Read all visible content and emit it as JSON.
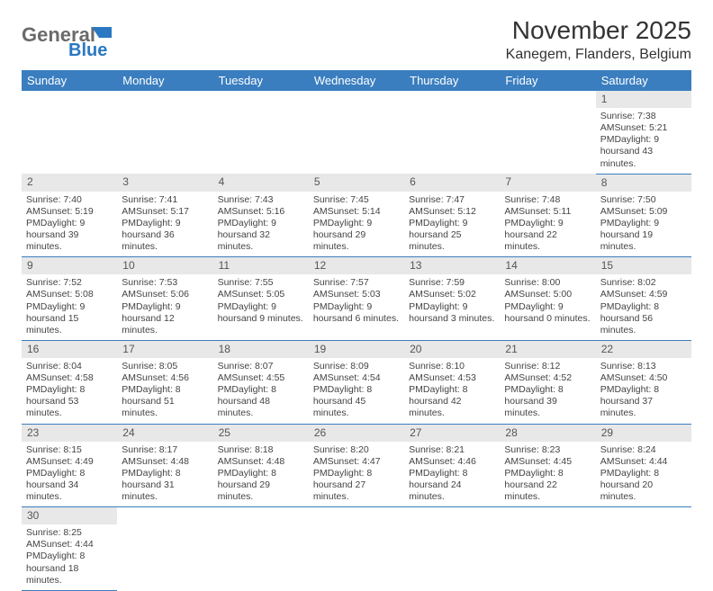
{
  "logo": {
    "word1": "General",
    "word2": "Blue",
    "word1_color": "#6a6a6a",
    "word2_color": "#2b78c2"
  },
  "title": "November 2025",
  "location": "Kanegem, Flanders, Belgium",
  "colors": {
    "header_bg": "#3a7ebf",
    "row_divider": "#3a7ebf",
    "daynum_bg": "#e8e8e8"
  },
  "daysOfWeek": [
    "Sunday",
    "Monday",
    "Tuesday",
    "Wednesday",
    "Thursday",
    "Friday",
    "Saturday"
  ],
  "weeks": [
    [
      null,
      null,
      null,
      null,
      null,
      null,
      {
        "n": "1",
        "sr": "7:38 AM",
        "ss": "5:21 PM",
        "dl": "9 hours",
        "dm": "and 43 minutes."
      }
    ],
    [
      {
        "n": "2",
        "sr": "7:40 AM",
        "ss": "5:19 PM",
        "dl": "9 hours",
        "dm": "and 39 minutes."
      },
      {
        "n": "3",
        "sr": "7:41 AM",
        "ss": "5:17 PM",
        "dl": "9 hours",
        "dm": "and 36 minutes."
      },
      {
        "n": "4",
        "sr": "7:43 AM",
        "ss": "5:16 PM",
        "dl": "9 hours",
        "dm": "and 32 minutes."
      },
      {
        "n": "5",
        "sr": "7:45 AM",
        "ss": "5:14 PM",
        "dl": "9 hours",
        "dm": "and 29 minutes."
      },
      {
        "n": "6",
        "sr": "7:47 AM",
        "ss": "5:12 PM",
        "dl": "9 hours",
        "dm": "and 25 minutes."
      },
      {
        "n": "7",
        "sr": "7:48 AM",
        "ss": "5:11 PM",
        "dl": "9 hours",
        "dm": "and 22 minutes."
      },
      {
        "n": "8",
        "sr": "7:50 AM",
        "ss": "5:09 PM",
        "dl": "9 hours",
        "dm": "and 19 minutes."
      }
    ],
    [
      {
        "n": "9",
        "sr": "7:52 AM",
        "ss": "5:08 PM",
        "dl": "9 hours",
        "dm": "and 15 minutes."
      },
      {
        "n": "10",
        "sr": "7:53 AM",
        "ss": "5:06 PM",
        "dl": "9 hours",
        "dm": "and 12 minutes."
      },
      {
        "n": "11",
        "sr": "7:55 AM",
        "ss": "5:05 PM",
        "dl": "9 hours",
        "dm": "and 9 minutes."
      },
      {
        "n": "12",
        "sr": "7:57 AM",
        "ss": "5:03 PM",
        "dl": "9 hours",
        "dm": "and 6 minutes."
      },
      {
        "n": "13",
        "sr": "7:59 AM",
        "ss": "5:02 PM",
        "dl": "9 hours",
        "dm": "and 3 minutes."
      },
      {
        "n": "14",
        "sr": "8:00 AM",
        "ss": "5:00 PM",
        "dl": "9 hours",
        "dm": "and 0 minutes."
      },
      {
        "n": "15",
        "sr": "8:02 AM",
        "ss": "4:59 PM",
        "dl": "8 hours",
        "dm": "and 56 minutes."
      }
    ],
    [
      {
        "n": "16",
        "sr": "8:04 AM",
        "ss": "4:58 PM",
        "dl": "8 hours",
        "dm": "and 53 minutes."
      },
      {
        "n": "17",
        "sr": "8:05 AM",
        "ss": "4:56 PM",
        "dl": "8 hours",
        "dm": "and 51 minutes."
      },
      {
        "n": "18",
        "sr": "8:07 AM",
        "ss": "4:55 PM",
        "dl": "8 hours",
        "dm": "and 48 minutes."
      },
      {
        "n": "19",
        "sr": "8:09 AM",
        "ss": "4:54 PM",
        "dl": "8 hours",
        "dm": "and 45 minutes."
      },
      {
        "n": "20",
        "sr": "8:10 AM",
        "ss": "4:53 PM",
        "dl": "8 hours",
        "dm": "and 42 minutes."
      },
      {
        "n": "21",
        "sr": "8:12 AM",
        "ss": "4:52 PM",
        "dl": "8 hours",
        "dm": "and 39 minutes."
      },
      {
        "n": "22",
        "sr": "8:13 AM",
        "ss": "4:50 PM",
        "dl": "8 hours",
        "dm": "and 37 minutes."
      }
    ],
    [
      {
        "n": "23",
        "sr": "8:15 AM",
        "ss": "4:49 PM",
        "dl": "8 hours",
        "dm": "and 34 minutes."
      },
      {
        "n": "24",
        "sr": "8:17 AM",
        "ss": "4:48 PM",
        "dl": "8 hours",
        "dm": "and 31 minutes."
      },
      {
        "n": "25",
        "sr": "8:18 AM",
        "ss": "4:48 PM",
        "dl": "8 hours",
        "dm": "and 29 minutes."
      },
      {
        "n": "26",
        "sr": "8:20 AM",
        "ss": "4:47 PM",
        "dl": "8 hours",
        "dm": "and 27 minutes."
      },
      {
        "n": "27",
        "sr": "8:21 AM",
        "ss": "4:46 PM",
        "dl": "8 hours",
        "dm": "and 24 minutes."
      },
      {
        "n": "28",
        "sr": "8:23 AM",
        "ss": "4:45 PM",
        "dl": "8 hours",
        "dm": "and 22 minutes."
      },
      {
        "n": "29",
        "sr": "8:24 AM",
        "ss": "4:44 PM",
        "dl": "8 hours",
        "dm": "and 20 minutes."
      }
    ],
    [
      {
        "n": "30",
        "sr": "8:25 AM",
        "ss": "4:44 PM",
        "dl": "8 hours",
        "dm": "and 18 minutes."
      },
      null,
      null,
      null,
      null,
      null,
      null
    ]
  ],
  "labels": {
    "sunrise": "Sunrise: ",
    "sunset": "Sunset: ",
    "daylight": "Daylight: "
  }
}
